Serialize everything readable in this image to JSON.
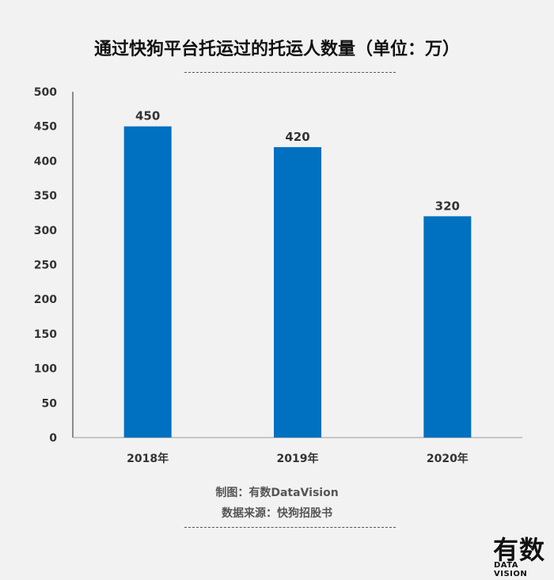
{
  "chart_data": {
    "type": "bar",
    "title": "通过快狗平台托运过的托运人数量（单位：万）",
    "categories": [
      "2018年",
      "2019年",
      "2020年"
    ],
    "values": [
      450,
      420,
      320
    ],
    "value_labels": [
      "450",
      "420",
      "320"
    ],
    "ylim": [
      0,
      500
    ],
    "yticks": [
      "0",
      "50",
      "100",
      "150",
      "200",
      "250",
      "300",
      "350",
      "400",
      "450",
      "500"
    ],
    "xlabel": "",
    "ylabel": "",
    "grid": false,
    "bar_color": "#0070c0"
  },
  "footer": {
    "maker": "制图：有数DataVision",
    "source": "数据来源：快狗招股书"
  },
  "brand": {
    "main": "有数",
    "sub": "DATA VISION"
  }
}
